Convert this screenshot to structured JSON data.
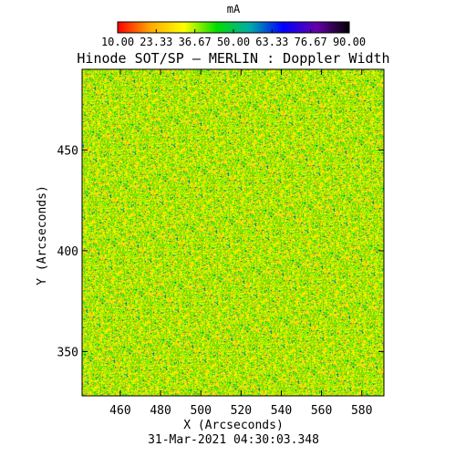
{
  "chart_data": {
    "type": "heatmap",
    "title": "Hinode SOT/SP — MERLIN : Doppler Width",
    "colorbar": {
      "unit": "mA",
      "min": 10.0,
      "max": 90.0,
      "tick_labels": [
        "10.00",
        "23.33",
        "36.67",
        "50.00",
        "63.33",
        "76.67",
        "90.00"
      ],
      "palette": [
        "#ff0000",
        "#ffaa00",
        "#ffff00",
        "#00dd00",
        "#00aaaa",
        "#0000ff",
        "#6600aa",
        "#000000"
      ]
    },
    "xlabel": "X (Arcseconds)",
    "ylabel": "Y (Arcseconds)",
    "xlim": [
      441,
      591
    ],
    "ylim": [
      328,
      490
    ],
    "x_ticks": [
      460,
      480,
      500,
      520,
      540,
      560,
      580
    ],
    "y_ticks": [
      350,
      400,
      450
    ],
    "x_tick_labels": [
      "460",
      "480",
      "500",
      "520",
      "540",
      "560",
      "580"
    ],
    "y_tick_labels": [
      "350",
      "400",
      "450"
    ],
    "value_distribution": {
      "typical_range": [
        10,
        60
      ],
      "dominant_range": [
        20,
        50
      ]
    },
    "timestamp": "31-Mar-2021 04:30:03.348"
  }
}
